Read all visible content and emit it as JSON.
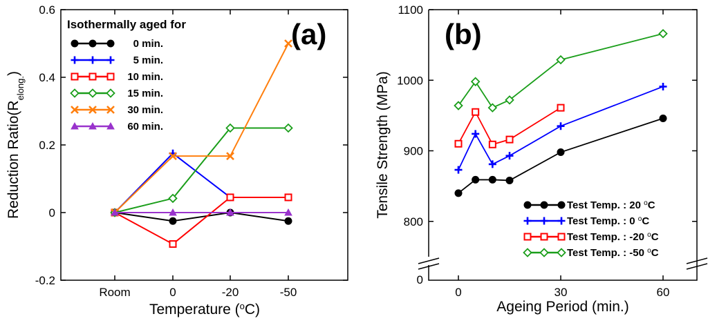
{
  "chart_data": [
    {
      "type": "line",
      "panel_label": "(a)",
      "categories": [
        "Room",
        "0",
        "-20",
        "-50"
      ],
      "xlabel": "Temperature (",
      "xlabel_sup": "o",
      "xlabel_end": "C)",
      "ylabel": "Reduction Ratio(R",
      "ylabel_sub": "elong.",
      "ylabel_end": ")",
      "ylim": [
        -0.2,
        0.6
      ],
      "yticks": [
        "0.6",
        "0.4",
        "0.2",
        "0",
        "-0.2"
      ],
      "ytick_values": [
        0.6,
        0.4,
        0.2,
        0,
        -0.2
      ],
      "legend_title": "Isothermally aged for",
      "series": [
        {
          "name": "0 min.",
          "color": "#000000",
          "marker": "circle",
          "values": [
            0,
            -0.025,
            0,
            -0.025
          ]
        },
        {
          "name": "5 min.",
          "color": "#0000ff",
          "marker": "plus",
          "values": [
            0,
            0.175,
            0.045,
            0.045
          ]
        },
        {
          "name": "10 min.",
          "color": "#ff0000",
          "marker": "square",
          "values": [
            0,
            -0.093,
            0.045,
            0.045
          ]
        },
        {
          "name": "15 min.",
          "color": "#1a9e1a",
          "marker": "diamond",
          "values": [
            0,
            0.042,
            0.25,
            0.25
          ]
        },
        {
          "name": "30 min.",
          "color": "#ff7f0e",
          "marker": "x",
          "values": [
            0,
            0.167,
            0.167,
            0.5
          ]
        },
        {
          "name": "60 min.",
          "color": "#9933cc",
          "marker": "triangle",
          "values": [
            0,
            0,
            0,
            0
          ]
        }
      ]
    },
    {
      "type": "line",
      "panel_label": "(b)",
      "xlabel": "Ageing Period (min.)",
      "ylabel": "Tensile Strength (MPa)",
      "x": [
        0,
        5,
        10,
        15,
        30,
        60
      ],
      "xticks": [
        "0",
        "30",
        "60"
      ],
      "xtick_values": [
        0,
        30,
        60
      ],
      "ylim_display": [
        750,
        1100
      ],
      "yticks": [
        "1100",
        "1000",
        "900",
        "800",
        "0"
      ],
      "ytick_values": [
        1100,
        1000,
        900,
        800
      ],
      "axis_break_label": "0",
      "series": [
        {
          "name": "Test Temp. :  20 ",
          "unit": "C",
          "color": "#000000",
          "marker": "circle",
          "x": [
            0,
            5,
            10,
            15,
            30,
            60
          ],
          "values": [
            840,
            859,
            859,
            858,
            898,
            946
          ]
        },
        {
          "name": "Test Temp. :    0 ",
          "unit": "C",
          "color": "#0000ff",
          "marker": "plus",
          "x": [
            0,
            5,
            10,
            15,
            30,
            60
          ],
          "values": [
            873,
            924,
            881,
            893,
            935,
            991
          ]
        },
        {
          "name": "Test Temp. : -20 ",
          "unit": "C",
          "color": "#ff0000",
          "marker": "square",
          "x": [
            0,
            5,
            10,
            15,
            30
          ],
          "values": [
            910,
            955,
            909,
            916,
            961
          ]
        },
        {
          "name": "Test Temp. : -50 ",
          "unit": "C",
          "color": "#1a9e1a",
          "marker": "diamond",
          "x": [
            0,
            5,
            10,
            15,
            30,
            60
          ],
          "values": [
            964,
            998,
            961,
            972,
            1029,
            1066
          ]
        }
      ]
    }
  ]
}
